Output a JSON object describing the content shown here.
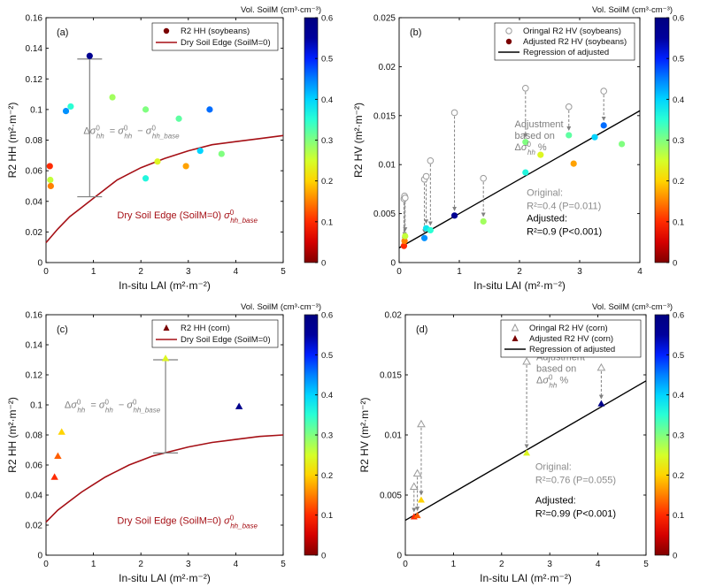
{
  "colorbar": {
    "title": "Vol. SoilM (cm³·cm⁻³)",
    "ticks": [
      "0",
      "0.1",
      "0.2",
      "0.3",
      "0.4",
      "0.5",
      "0.6"
    ],
    "range": [
      0,
      0.6
    ],
    "colormap": [
      "#800000",
      "#d40000",
      "#ff2a00",
      "#ff8000",
      "#ffd400",
      "#d4ff2a",
      "#80ff80",
      "#2affd4",
      "#00d4ff",
      "#0080ff",
      "#0020ff",
      "#00009c",
      "#000080"
    ]
  },
  "chart_data": [
    {
      "panel": "(a)",
      "type": "scatter",
      "xlabel": "In-situ LAI (m²·m⁻²)",
      "ylabel": "R2 HH (m²·m⁻²)",
      "xlim": [
        0,
        5
      ],
      "ylim": [
        0,
        0.16
      ],
      "xticks": [
        "0",
        "1",
        "2",
        "3",
        "4",
        "5"
      ],
      "yticks": [
        "0",
        "0.02",
        "0.04",
        "0.06",
        "0.08",
        "0.1",
        "0.12",
        "0.14",
        "0.16"
      ],
      "legend": {
        "position": "top-right",
        "entries": [
          "R2 HH (soybeans)",
          "Dry Soil Edge (SoilM=0)"
        ]
      },
      "series": [
        {
          "name": "R2 HH (soybeans)",
          "marker": "circle",
          "points": [
            {
              "x": 0.08,
              "y": 0.063,
              "m": 0.1
            },
            {
              "x": 0.09,
              "y": 0.054,
              "m": 0.26
            },
            {
              "x": 0.1,
              "y": 0.05,
              "m": 0.15
            },
            {
              "x": 0.42,
              "y": 0.099,
              "m": 0.44
            },
            {
              "x": 0.52,
              "y": 0.102,
              "m": 0.35
            },
            {
              "x": 0.92,
              "y": 0.135,
              "m": 0.57
            },
            {
              "x": 1.4,
              "y": 0.108,
              "m": 0.28
            },
            {
              "x": 2.1,
              "y": 0.1,
              "m": 0.3
            },
            {
              "x": 2.1,
              "y": 0.055,
              "m": 0.36
            },
            {
              "x": 2.35,
              "y": 0.066,
              "m": 0.24
            },
            {
              "x": 2.8,
              "y": 0.094,
              "m": 0.32
            },
            {
              "x": 2.95,
              "y": 0.063,
              "m": 0.17
            },
            {
              "x": 3.25,
              "y": 0.073,
              "m": 0.4
            },
            {
              "x": 3.45,
              "y": 0.1,
              "m": 0.46
            },
            {
              "x": 3.7,
              "y": 0.071,
              "m": 0.3
            }
          ]
        },
        {
          "name": "Dry Soil Edge (SoilM=0)",
          "type": "line",
          "x": [
            0,
            0.25,
            0.5,
            0.75,
            1,
            1.25,
            1.5,
            1.75,
            2,
            2.25,
            2.5,
            3,
            3.5,
            4,
            4.5,
            5
          ],
          "y": [
            0.013,
            0.022,
            0.03,
            0.036,
            0.042,
            0.048,
            0.054,
            0.058,
            0.062,
            0.065,
            0.068,
            0.073,
            0.077,
            0.079,
            0.081,
            0.083
          ]
        }
      ],
      "annotations": {
        "equation": "Δσ⁰hh = σ⁰hh − σ⁰hh_base",
        "equation_anchor": {
          "x": 1.8,
          "y": 0.084
        },
        "arrow": {
          "x": 0.92,
          "y_top": 0.133,
          "y_bottom": 0.043
        },
        "edge_label": "Dry Soil Edge (SoilM=0)",
        "edge_symbol": "σ⁰hh_base",
        "edge_label_anchor": {
          "x": 1.5,
          "y": 0.029
        }
      }
    },
    {
      "panel": "(b)",
      "type": "scatter",
      "xlabel": "In-situ LAI (m²·m⁻²)",
      "ylabel": "R2 HV (m²·m⁻²)",
      "xlim": [
        0,
        4
      ],
      "ylim": [
        0,
        0.025
      ],
      "xticks": [
        "0",
        "1",
        "2",
        "3",
        "4"
      ],
      "yticks": [
        "0",
        "0.005",
        "0.01",
        "0.015",
        "0.02",
        "0.025"
      ],
      "legend": {
        "position": "top-right",
        "entries": [
          "Oringal R2 HV (soybeans)",
          "Adjusted R2 HV (soybeans)",
          "Regression of adjusted"
        ]
      },
      "pairs": [
        {
          "x": 0.08,
          "y0": 0.0065,
          "y1": 0.0017,
          "m": 0.1
        },
        {
          "x": 0.09,
          "y0": 0.0068,
          "y1": 0.0022,
          "m": 0.15
        },
        {
          "x": 0.1,
          "y0": 0.0066,
          "y1": 0.0027,
          "m": 0.26
        },
        {
          "x": 0.42,
          "y0": 0.0085,
          "y1": 0.0025,
          "m": 0.44
        },
        {
          "x": 0.45,
          "y0": 0.0088,
          "y1": 0.0035,
          "m": 0.38
        },
        {
          "x": 0.52,
          "y0": 0.0104,
          "y1": 0.0033,
          "m": 0.35
        },
        {
          "x": 0.92,
          "y0": 0.0153,
          "y1": 0.0048,
          "m": 0.57
        },
        {
          "x": 1.4,
          "y0": 0.0086,
          "y1": 0.0042,
          "m": 0.28
        },
        {
          "x": 2.1,
          "y0": 0.0178,
          "y1": 0.0123,
          "m": 0.3
        },
        {
          "x": 2.1,
          "y0": null,
          "y1": 0.0092,
          "m": 0.36
        },
        {
          "x": 2.35,
          "y0": null,
          "y1": 0.011,
          "m": 0.24
        },
        {
          "x": 2.82,
          "y0": 0.0159,
          "y1": 0.013,
          "m": 0.32
        },
        {
          "x": 2.9,
          "y0": null,
          "y1": 0.0101,
          "m": 0.17
        },
        {
          "x": 3.25,
          "y0": null,
          "y1": 0.0128,
          "m": 0.4
        },
        {
          "x": 3.4,
          "y0": 0.0175,
          "y1": 0.014,
          "m": 0.46
        },
        {
          "x": 3.7,
          "y0": null,
          "y1": 0.0121,
          "m": 0.3
        }
      ],
      "regression": {
        "x": [
          0,
          4
        ],
        "y": [
          0.0015,
          0.0155
        ]
      },
      "annotations": {
        "adjust_lines": [
          "Adjustment",
          "based on",
          "Δσ⁰hh%"
        ],
        "adjust_anchor": {
          "x": 1.92,
          "y": 0.0138
        },
        "original_lines": [
          "Original:",
          "R²=0.4 (P=0.011)"
        ],
        "original_anchor": {
          "x": 2.12,
          "y": 0.0068
        },
        "adjusted_lines": [
          "Adjusted:",
          "R²=0.9 (P<0.001)"
        ],
        "adjusted_anchor": {
          "x": 2.12,
          "y": 0.0042
        }
      }
    },
    {
      "panel": "(c)",
      "type": "scatter",
      "xlabel": "In-situ LAI (m²·m⁻²)",
      "ylabel": "R2 HH (m²·m⁻²)",
      "xlim": [
        0,
        5
      ],
      "ylim": [
        0,
        0.16
      ],
      "xticks": [
        "0",
        "1",
        "2",
        "3",
        "4",
        "5"
      ],
      "yticks": [
        "0",
        "0.02",
        "0.04",
        "0.06",
        "0.08",
        "0.1",
        "0.12",
        "0.14",
        "0.16"
      ],
      "legend": {
        "position": "top-right",
        "entries": [
          "R2 HH (corn)",
          "Dry Soil Edge (SoilM=0)"
        ]
      },
      "series": [
        {
          "name": "R2 HH (corn)",
          "marker": "triangle",
          "points": [
            {
              "x": 0.18,
              "y": 0.052,
              "m": 0.1
            },
            {
              "x": 0.25,
              "y": 0.066,
              "m": 0.13
            },
            {
              "x": 0.33,
              "y": 0.082,
              "m": 0.2
            },
            {
              "x": 2.52,
              "y": 0.131,
              "m": 0.24
            },
            {
              "x": 4.07,
              "y": 0.099,
              "m": 0.58
            }
          ]
        },
        {
          "name": "Dry Soil Edge (SoilM=0)",
          "type": "line",
          "x": [
            0,
            0.25,
            0.5,
            0.75,
            1,
            1.25,
            1.5,
            1.75,
            2,
            2.25,
            2.5,
            3,
            3.5,
            4,
            4.5,
            5
          ],
          "y": [
            0.022,
            0.03,
            0.036,
            0.042,
            0.047,
            0.052,
            0.056,
            0.06,
            0.063,
            0.066,
            0.068,
            0.072,
            0.075,
            0.077,
            0.079,
            0.08
          ]
        }
      ],
      "annotations": {
        "equation": "Δσ⁰hh = σ⁰hh − σ⁰hh_base",
        "equation_anchor": {
          "x": 1.4,
          "y": 0.098
        },
        "arrow": {
          "x": 2.52,
          "y_top": 0.13,
          "y_bottom": 0.068
        },
        "edge_label": "Dry Soil Edge (SoilM=0)",
        "edge_symbol": "σ⁰hh_base",
        "edge_label_anchor": {
          "x": 1.5,
          "y": 0.021
        }
      }
    },
    {
      "panel": "(d)",
      "type": "scatter",
      "xlabel": "In-situ LAI (m²·m⁻²)",
      "ylabel": "R2 HV (m²·m⁻²)",
      "xlim": [
        0,
        5
      ],
      "ylim": [
        0,
        0.02
      ],
      "xticks": [
        "0",
        "1",
        "2",
        "3",
        "4",
        "5"
      ],
      "yticks": [
        "0",
        "0.005",
        "0.01",
        "0.015",
        "0.02"
      ],
      "legend": {
        "position": "top-right",
        "entries": [
          "Oringal R2 HV (corn)",
          "Adjusted R2 HV (corn)",
          "Regression of adjusted"
        ]
      },
      "pairs": [
        {
          "x": 0.18,
          "y0": 0.0057,
          "y1": 0.0032,
          "m": 0.1
        },
        {
          "x": 0.25,
          "y0": 0.0068,
          "y1": 0.0033,
          "m": 0.13
        },
        {
          "x": 0.33,
          "y0": 0.0109,
          "y1": 0.0046,
          "m": 0.2
        },
        {
          "x": 2.52,
          "y0": 0.0161,
          "y1": 0.0085,
          "m": 0.24
        },
        {
          "x": 4.07,
          "y0": 0.0156,
          "y1": 0.0126,
          "m": 0.58
        }
      ],
      "regression": {
        "x": [
          0,
          5
        ],
        "y": [
          0.0029,
          0.0145
        ]
      },
      "annotations": {
        "adjust_lines": [
          "Adjustment",
          "based on",
          "Δσ⁰hh%"
        ],
        "adjust_anchor": {
          "x": 2.72,
          "y": 0.0162
        },
        "original_lines": [
          "Original:",
          "R²=0.76 (P=0.055)"
        ],
        "original_anchor": {
          "x": 2.7,
          "y": 0.0071
        },
        "adjusted_lines": [
          "Adjusted:",
          "R²=0.99 (P<0.001)"
        ],
        "adjusted_anchor": {
          "x": 2.7,
          "y": 0.0043
        }
      }
    }
  ]
}
